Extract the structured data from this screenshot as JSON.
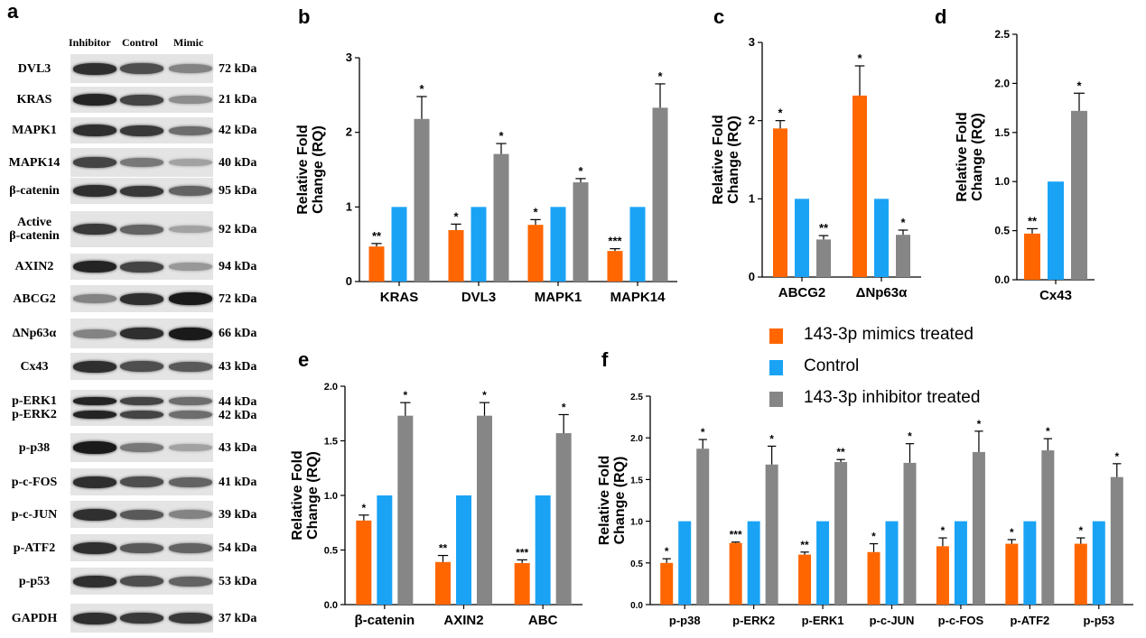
{
  "panel_letters": {
    "a": "a",
    "b": "b",
    "c": "c",
    "d": "d",
    "e": "e",
    "f": "f"
  },
  "colors": {
    "mimic": "#ff6600",
    "control": "#1aa3f5",
    "inhibitor": "#868686"
  },
  "legend": [
    {
      "label": "143-3p mimics treated",
      "color": "#ff6600"
    },
    {
      "label": "Control",
      "color": "#1aa3f5"
    },
    {
      "label": "143-3p inhibitor treated",
      "color": "#868686"
    }
  ],
  "blot": {
    "lanes": [
      "Inhibitor",
      "Control",
      "Mimic"
    ],
    "rows": [
      {
        "label": "DVL3",
        "kda": "72 kDa",
        "levels": [
          0.85,
          0.7,
          0.45
        ]
      },
      {
        "label": "KRAS",
        "kda": "21 kDa",
        "levels": [
          0.9,
          0.75,
          0.4
        ]
      },
      {
        "label": "MAPK1",
        "kda": "42 kDa",
        "levels": [
          0.85,
          0.8,
          0.55
        ]
      },
      {
        "label": "MAPK14",
        "kda": "40 kDa",
        "levels": [
          0.75,
          0.5,
          0.3
        ]
      },
      {
        "label": "β-catenin",
        "kda": "95 kDa",
        "levels": [
          0.85,
          0.8,
          0.6
        ]
      },
      {
        "label": "Active\nβ-catenin",
        "kda": "92 kDa",
        "levels": [
          0.8,
          0.6,
          0.3
        ]
      },
      {
        "label": "AXIN2",
        "kda": "94 kDa",
        "levels": [
          0.9,
          0.75,
          0.35
        ]
      },
      {
        "label": "ABCG2",
        "kda": "72 kDa",
        "levels": [
          0.45,
          0.85,
          0.95
        ]
      },
      {
        "label": "ΔNp63α",
        "kda": "66 kDa",
        "levels": [
          0.45,
          0.85,
          0.95
        ]
      },
      {
        "label": "Cx43",
        "kda": "43 kDa",
        "levels": [
          0.85,
          0.7,
          0.65
        ]
      },
      {
        "label": "p-ERK1\np-ERK2",
        "kda": "44 kDa\n42 kDa",
        "levels": [
          0.9,
          0.75,
          0.55
        ]
      },
      {
        "label": "p-p38",
        "kda": "43 kDa",
        "levels": [
          0.95,
          0.5,
          0.3
        ]
      },
      {
        "label": "p-c-FOS",
        "kda": "41 kDa",
        "levels": [
          0.85,
          0.7,
          0.6
        ]
      },
      {
        "label": "p-c-JUN",
        "kda": "39 kDa",
        "levels": [
          0.85,
          0.65,
          0.45
        ]
      },
      {
        "label": "p-ATF2",
        "kda": "54 kDa",
        "levels": [
          0.85,
          0.65,
          0.6
        ]
      },
      {
        "label": "p-p53",
        "kda": "53 kDa",
        "levels": [
          0.85,
          0.7,
          0.6
        ]
      },
      {
        "label": "GAPDH",
        "kda": "37 kDa",
        "levels": [
          0.85,
          0.8,
          0.8
        ]
      }
    ]
  },
  "chart_data": [
    {
      "id": "b",
      "type": "bar",
      "ylabel": "Relative Fold\nChange (RQ)",
      "ylim": [
        0,
        3
      ],
      "yticks": [
        "0",
        "1",
        "2",
        "3"
      ],
      "categories": [
        "KRAS",
        "DVL3",
        "MAPK1",
        "MAPK14"
      ],
      "mimic": {
        "values": [
          0.47,
          0.69,
          0.76,
          0.41
        ],
        "errors": [
          0.04,
          0.08,
          0.07,
          0.03
        ],
        "sig": [
          "**",
          "*",
          "*",
          "***"
        ]
      },
      "control": {
        "values": [
          1,
          1,
          1,
          1
        ]
      },
      "inhibitor": {
        "values": [
          2.18,
          1.71,
          1.33,
          2.33
        ],
        "errors": [
          0.3,
          0.14,
          0.05,
          0.32
        ],
        "sig": [
          "*",
          "*",
          "*",
          "*"
        ]
      }
    },
    {
      "id": "c",
      "type": "bar",
      "ylabel": "Relative Fold\nChange (RQ)",
      "ylim": [
        0,
        3
      ],
      "yticks": [
        "0",
        "1",
        "2",
        "3"
      ],
      "categories": [
        "ABCG2",
        "ΔNp63α"
      ],
      "mimic": {
        "values": [
          1.9,
          2.32
        ],
        "errors": [
          0.1,
          0.38
        ],
        "sig": [
          "*",
          "*"
        ]
      },
      "control": {
        "values": [
          1,
          1
        ]
      },
      "inhibitor": {
        "values": [
          0.48,
          0.54
        ],
        "errors": [
          0.05,
          0.06
        ],
        "sig": [
          "**",
          "*"
        ]
      }
    },
    {
      "id": "d",
      "type": "bar",
      "ylabel": "Relative Fold\nChange (RQ)",
      "ylim": [
        0,
        2.5
      ],
      "yticks": [
        "0.0",
        "0.5",
        "1.0",
        "1.5",
        "2.0",
        "2.5"
      ],
      "categories": [
        "Cx43"
      ],
      "mimic": {
        "values": [
          0.47
        ],
        "errors": [
          0.05
        ],
        "sig": [
          "**"
        ]
      },
      "control": {
        "values": [
          1
        ]
      },
      "inhibitor": {
        "values": [
          1.72
        ],
        "errors": [
          0.18
        ],
        "sig": [
          "*"
        ]
      }
    },
    {
      "id": "e",
      "type": "bar",
      "ylabel": "Relative Fold\nChange (RQ)",
      "ylim": [
        0,
        2
      ],
      "yticks": [
        "0.0",
        "0.5",
        "1.0",
        "1.5",
        "2.0"
      ],
      "categories": [
        "β-catenin",
        "AXIN2",
        "ABC"
      ],
      "mimic": {
        "values": [
          0.77,
          0.39,
          0.38
        ],
        "errors": [
          0.05,
          0.06,
          0.03
        ],
        "sig": [
          "*",
          "**",
          "***"
        ]
      },
      "control": {
        "values": [
          1,
          1,
          1
        ]
      },
      "inhibitor": {
        "values": [
          1.73,
          1.73,
          1.57
        ],
        "errors": [
          0.12,
          0.12,
          0.17
        ],
        "sig": [
          "*",
          "*",
          "*"
        ]
      }
    },
    {
      "id": "f",
      "type": "bar",
      "ylabel": "Relative Fold\nChange (RQ)",
      "ylim": [
        0,
        2.5
      ],
      "yticks": [
        "0.0",
        "0.5",
        "1.0",
        "1.5",
        "2.0",
        "2.5"
      ],
      "categories": [
        "p-p38",
        "p-ERK2",
        "p-ERK1",
        "p-c-JUN",
        "p-c-FOS",
        "p-ATF2",
        "p-p53"
      ],
      "mimic": {
        "values": [
          0.5,
          0.74,
          0.6,
          0.63,
          0.7,
          0.73,
          0.73
        ],
        "errors": [
          0.05,
          0.01,
          0.03,
          0.1,
          0.1,
          0.05,
          0.07
        ],
        "sig": [
          "*",
          "***",
          "**",
          "*",
          "*",
          "*",
          "*"
        ]
      },
      "control": {
        "values": [
          1,
          1,
          1,
          1,
          1,
          1,
          1
        ]
      },
      "inhibitor": {
        "values": [
          1.87,
          1.68,
          1.71,
          1.7,
          1.83,
          1.85,
          1.53
        ],
        "errors": [
          0.11,
          0.22,
          0.03,
          0.23,
          0.25,
          0.14,
          0.16
        ],
        "sig": [
          "*",
          "*",
          "**",
          "*",
          "*",
          "*",
          "*"
        ]
      }
    }
  ]
}
